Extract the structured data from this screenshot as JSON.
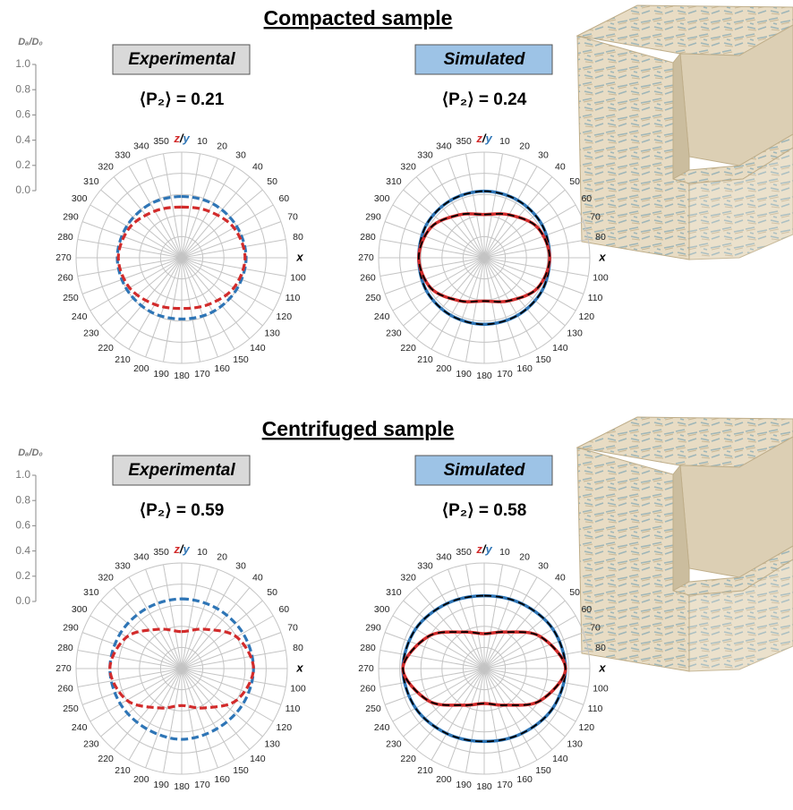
{
  "panels": [
    {
      "title": "Compacted sample"
    },
    {
      "title": "Centrifuged sample"
    }
  ],
  "chart_data": [
    {
      "type": "polar",
      "title": "Experimental",
      "label_bg": "#d9d9d9",
      "annotation": "⟨P₂⟩ = 0.21",
      "rlabel": "Dₐ/D₀",
      "rlim": [
        0,
        1
      ],
      "rticks": [
        {
          "value": 0,
          "label": "0.0"
        },
        {
          "value": 0.2,
          "label": "0.2"
        },
        {
          "value": 0.4,
          "label": "0.4"
        },
        {
          "value": 0.6,
          "label": "0.6"
        },
        {
          "value": 0.8,
          "label": "0.8"
        },
        {
          "value": 1,
          "label": "1.0"
        }
      ],
      "thetaticks": [
        {
          "value": 0,
          "label": "z/y"
        },
        10,
        20,
        30,
        40,
        50,
        60,
        70,
        80,
        {
          "value": 90,
          "label": "x"
        },
        100,
        110,
        120,
        130,
        140,
        150,
        160,
        170,
        180,
        190,
        200,
        210,
        220,
        230,
        240,
        250,
        260,
        270,
        280,
        290,
        300,
        310,
        320,
        330,
        340,
        350
      ],
      "theta": [
        0,
        30,
        60,
        90,
        120,
        150,
        180,
        210,
        240,
        270,
        300,
        330
      ],
      "series": [
        {
          "color": "#2e75b6",
          "line": "dashed",
          "values": [
            0.58,
            0.59,
            0.6,
            0.61,
            0.6,
            0.59,
            0.58,
            0.59,
            0.6,
            0.61,
            0.6,
            0.59
          ]
        },
        {
          "color": "#d22b2b",
          "line": "dashed",
          "values": [
            0.48,
            0.51,
            0.57,
            0.6,
            0.57,
            0.51,
            0.48,
            0.51,
            0.57,
            0.6,
            0.57,
            0.51
          ]
        }
      ]
    },
    {
      "type": "polar",
      "title": "Simulated",
      "label_bg": "#9dc3e6",
      "annotation": "⟨P₂⟩ = 0.24",
      "rlim": [
        0,
        1
      ],
      "rticks": [
        0.2,
        0.4,
        0.6,
        0.8,
        1
      ],
      "thetaticks": [
        {
          "value": 0,
          "label": "z/y"
        },
        10,
        20,
        30,
        40,
        50,
        60,
        70,
        80,
        {
          "value": 90,
          "label": "x"
        },
        100,
        110,
        120,
        130,
        140,
        150,
        160,
        170,
        180,
        190,
        200,
        210,
        220,
        230,
        240,
        250,
        260,
        270,
        280,
        290,
        300,
        310,
        320,
        330,
        340,
        350
      ],
      "theta": [
        0,
        30,
        60,
        90,
        120,
        150,
        180,
        210,
        240,
        270,
        300,
        330
      ],
      "series": [
        {
          "color": "#2e75b6",
          "line": "solid",
          "overlay": "#000000",
          "values": [
            0.63,
            0.63,
            0.63,
            0.62,
            0.63,
            0.63,
            0.63,
            0.63,
            0.63,
            0.62,
            0.63,
            0.63
          ]
        },
        {
          "color": "#d22b2b",
          "line": "solid",
          "overlay": "#000000",
          "values": [
            0.41,
            0.47,
            0.58,
            0.62,
            0.58,
            0.47,
            0.41,
            0.47,
            0.58,
            0.62,
            0.58,
            0.47
          ]
        }
      ]
    },
    {
      "type": "polar",
      "title": "Experimental",
      "label_bg": "#d9d9d9",
      "annotation": "⟨P₂⟩ = 0.59",
      "rlabel": "Dₐ/D₀",
      "rlim": [
        0,
        1
      ],
      "rticks": [
        {
          "value": 0,
          "label": "0.0"
        },
        {
          "value": 0.2,
          "label": "0.2"
        },
        {
          "value": 0.4,
          "label": "0.4"
        },
        {
          "value": 0.6,
          "label": "0.6"
        },
        {
          "value": 0.8,
          "label": "0.8"
        },
        {
          "value": 1,
          "label": "1.0"
        }
      ],
      "thetaticks": [
        {
          "value": 0,
          "label": "z/y"
        },
        10,
        20,
        30,
        40,
        50,
        60,
        70,
        80,
        {
          "value": 90,
          "label": "x"
        },
        100,
        110,
        120,
        130,
        140,
        150,
        160,
        170,
        180,
        190,
        200,
        210,
        220,
        230,
        240,
        250,
        260,
        270,
        280,
        290,
        300,
        310,
        320,
        330,
        340,
        350
      ],
      "theta": [
        0,
        30,
        60,
        90,
        120,
        150,
        180,
        210,
        240,
        270,
        300,
        330
      ],
      "series": [
        {
          "color": "#2e75b6",
          "line": "dashed",
          "values": [
            0.66,
            0.66,
            0.67,
            0.68,
            0.67,
            0.66,
            0.67,
            0.66,
            0.67,
            0.68,
            0.67,
            0.66
          ]
        },
        {
          "color": "#d22b2b",
          "line": "dashed",
          "values": [
            0.35,
            0.43,
            0.6,
            0.68,
            0.6,
            0.43,
            0.35,
            0.43,
            0.6,
            0.68,
            0.6,
            0.43
          ]
        }
      ]
    },
    {
      "type": "polar",
      "title": "Simulated",
      "label_bg": "#9dc3e6",
      "annotation": "⟨P₂⟩ = 0.58",
      "rlim": [
        0,
        1
      ],
      "rticks": [
        0.2,
        0.4,
        0.6,
        0.8,
        1
      ],
      "thetaticks": [
        {
          "value": 0,
          "label": "z/y"
        },
        10,
        20,
        30,
        40,
        50,
        60,
        70,
        80,
        {
          "value": 90,
          "label": "x"
        },
        100,
        110,
        120,
        130,
        140,
        150,
        160,
        170,
        180,
        190,
        200,
        210,
        220,
        230,
        240,
        250,
        260,
        270,
        280,
        290,
        300,
        310,
        320,
        330,
        340,
        350
      ],
      "theta": [
        0,
        30,
        60,
        90,
        120,
        150,
        180,
        210,
        240,
        270,
        300,
        330
      ],
      "series": [
        {
          "color": "#2e75b6",
          "line": "solid",
          "overlay": "#000000",
          "values": [
            0.69,
            0.71,
            0.75,
            0.77,
            0.75,
            0.71,
            0.69,
            0.71,
            0.75,
            0.77,
            0.75,
            0.71
          ]
        },
        {
          "color": "#d22b2b",
          "line": "solid",
          "overlay": "#000000",
          "values": [
            0.33,
            0.4,
            0.61,
            0.77,
            0.61,
            0.4,
            0.33,
            0.4,
            0.61,
            0.77,
            0.61,
            0.4
          ]
        }
      ]
    }
  ]
}
